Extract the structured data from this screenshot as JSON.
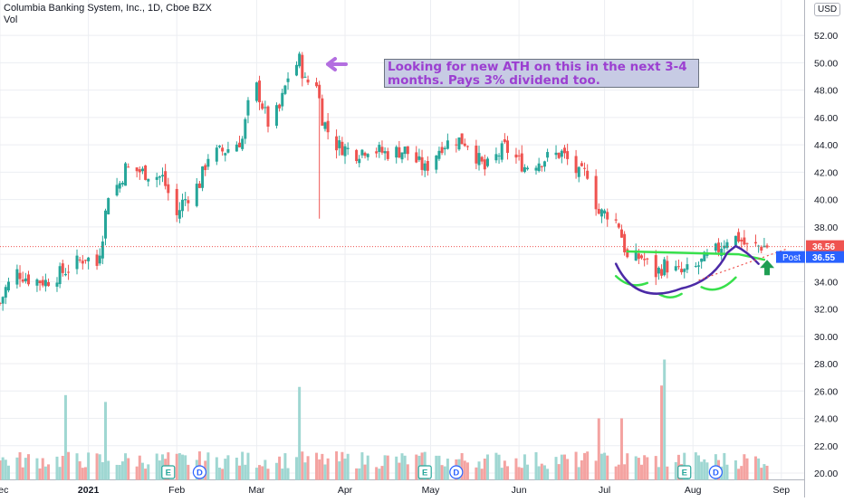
{
  "header": {
    "symbol_line": "Columbia Banking System, Inc., 1D, Cboe BZX",
    "volume_label": "Vol"
  },
  "currency": "USD",
  "annotation": "Looking for new ATH on this in the next 3-4 months. Pays 3% dividend too.",
  "price_labels": {
    "last": "36.56",
    "post_label": "Post",
    "post_value": "36.55"
  },
  "event_markers": [
    {
      "icon": "earnings-icon",
      "text": "E",
      "date": "2021-01-29"
    },
    {
      "icon": "dividend-icon",
      "text": "D",
      "date": "2021-02-09"
    },
    {
      "icon": "earnings-icon",
      "text": "E",
      "date": "2021-04-29"
    },
    {
      "icon": "dividend-icon",
      "text": "D",
      "date": "2021-05-10"
    },
    {
      "icon": "earnings-icon",
      "text": "E",
      "date": "2021-07-29"
    },
    {
      "icon": "dividend-icon",
      "text": "D",
      "date": "2021-08-09"
    }
  ],
  "colors": {
    "up": "#26a69a",
    "down": "#ef5350",
    "vol_up": "#9fd7d2",
    "vol_down": "#f4a3a1",
    "annotation_text": "#9c3fd1",
    "arrow": "#b36ee0",
    "hand_green": "#38e04c",
    "hand_purple": "#4b2aa6",
    "post_badge": "#2962ff",
    "grid": "#eceef2"
  },
  "chart_data": {
    "type": "candlestick",
    "title": "Columbia Banking System, Inc., 1D, Cboe BZX",
    "xlabel": "",
    "ylabel": "",
    "ylim": [
      19.0,
      54.0
    ],
    "ytick_labels": [
      "20.00",
      "22.00",
      "24.00",
      "26.00",
      "28.00",
      "30.00",
      "32.00",
      "34.00",
      "36.00",
      "38.00",
      "40.00",
      "42.00",
      "44.00",
      "46.00",
      "48.00",
      "50.00",
      "52.00"
    ],
    "xtick_labels": [
      "Dec",
      "2021",
      "Feb",
      "Mar",
      "Apr",
      "May",
      "Jun",
      "Jul",
      "Aug",
      "Sep"
    ],
    "xrange": [
      "2020-12-01",
      "2021-09-09"
    ],
    "grid": true,
    "last_price": 36.56,
    "post_price": 36.55,
    "control_points": [
      [
        "2020-12-01",
        32.4
      ],
      [
        "2020-12-03",
        33.5
      ],
      [
        "2020-12-07",
        34.7
      ],
      [
        "2020-12-11",
        34.2
      ],
      [
        "2020-12-17",
        34.0
      ],
      [
        "2020-12-23",
        34.7
      ],
      [
        "2020-12-31",
        35.8
      ],
      [
        "2021-01-04",
        35.2
      ],
      [
        "2021-01-06",
        37.5
      ],
      [
        "2021-01-08",
        40.5
      ],
      [
        "2021-01-12",
        41.2
      ],
      [
        "2021-01-14",
        42.3
      ],
      [
        "2021-01-20",
        42.0
      ],
      [
        "2021-01-27",
        41.6
      ],
      [
        "2021-02-01",
        38.8
      ],
      [
        "2021-02-03",
        39.8
      ],
      [
        "2021-02-09",
        41.2
      ],
      [
        "2021-02-12",
        43.2
      ],
      [
        "2021-02-18",
        43.6
      ],
      [
        "2021-02-24",
        44.4
      ],
      [
        "2021-02-26",
        46.8
      ],
      [
        "2021-03-01",
        48.2
      ],
      [
        "2021-03-05",
        45.6
      ],
      [
        "2021-03-09",
        46.6
      ],
      [
        "2021-03-12",
        49.0
      ],
      [
        "2021-03-16",
        50.2
      ],
      [
        "2021-03-18",
        48.6
      ],
      [
        "2021-03-22",
        48.6
      ],
      [
        "2021-03-24",
        46.0
      ],
      [
        "2021-03-26",
        45.0
      ],
      [
        "2021-03-29",
        44.0
      ],
      [
        "2021-04-05",
        43.4
      ],
      [
        "2021-04-09",
        43.8
      ],
      [
        "2021-04-15",
        43.4
      ],
      [
        "2021-04-22",
        43.6
      ],
      [
        "2021-04-29",
        42.2
      ],
      [
        "2021-05-05",
        44.0
      ],
      [
        "2021-05-10",
        44.4
      ],
      [
        "2021-05-14",
        44.2
      ],
      [
        "2021-05-20",
        42.2
      ],
      [
        "2021-05-27",
        43.8
      ],
      [
        "2021-06-03",
        42.4
      ],
      [
        "2021-06-10",
        43.0
      ],
      [
        "2021-06-16",
        43.4
      ],
      [
        "2021-06-22",
        41.8
      ],
      [
        "2021-06-25",
        42.0
      ],
      [
        "2021-06-29",
        39.0
      ],
      [
        "2021-07-02",
        39.0
      ],
      [
        "2021-07-06",
        38.2
      ],
      [
        "2021-07-09",
        35.6
      ],
      [
        "2021-07-14",
        35.8
      ],
      [
        "2021-07-19",
        34.6
      ],
      [
        "2021-07-22",
        35.2
      ],
      [
        "2021-07-28",
        34.6
      ],
      [
        "2021-08-02",
        35.0
      ],
      [
        "2021-08-05",
        35.6
      ],
      [
        "2021-08-10",
        36.4
      ],
      [
        "2021-08-13",
        37.2
      ],
      [
        "2021-08-17",
        37.2
      ],
      [
        "2021-08-20",
        36.5
      ],
      [
        "2021-08-24",
        36.6
      ],
      [
        "2021-08-27",
        36.6
      ]
    ],
    "volume_ylim": [
      19.5,
      30.0
    ],
    "volume_spikes": [
      [
        "2020-12-24",
        25.7
      ],
      [
        "2021-01-07",
        25.2
      ],
      [
        "2021-03-16",
        26.3
      ],
      [
        "2021-07-07",
        24.0
      ],
      [
        "2021-07-21",
        26.4
      ],
      [
        "2021-07-22",
        28.3
      ],
      [
        "2021-06-29",
        24.0
      ]
    ]
  }
}
